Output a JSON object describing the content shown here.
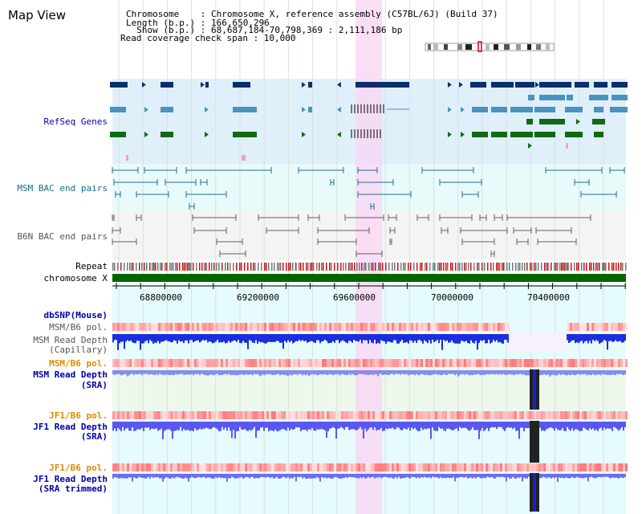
{
  "title": "Map View",
  "info": {
    "chromosome": "Chromosome    : Chromosome X, reference assembly (C57BL/6J) (Build 37)",
    "length": "Length (b.p.) : 166,650,296",
    "show": "  Show (b.p.) : 68,687,184-70,798,369 : 2,111,186 bp",
    "coverage": "Read coverage check span : 10,000"
  },
  "tracks": {
    "refseq": "RefSeq Genes",
    "msm_bac": "MSM BAC end pairs",
    "b6n_bac": "B6N BAC end pairs",
    "repeat": "Repeat",
    "chromosome": "chromosome X",
    "dbsnp": "dbSNP(Mouse)",
    "msm_pol": "MSM/B6 pol.",
    "msm_depth_cap_1": "MSM Read Depth",
    "msm_depth_cap_2": "(Capillary)",
    "msm_pol_2": "MSM/B6 pol.",
    "msm_depth_sra_1": "MSM Read Depth",
    "msm_depth_sra_2": "(SRA)",
    "jf1_pol": "JF1/B6 pol.",
    "jf1_depth_1": "JF1 Read Depth",
    "jf1_depth_2": "(SRA)",
    "jf1_pol_2": "JF1/B6 pol.",
    "jf1_trim_1": "JF1 Read Depth",
    "jf1_trim_2": "(SRA trimmed)"
  },
  "axis": {
    "ticks": [
      "68800000",
      "69200000",
      "69600000",
      "70000000",
      "70400000"
    ]
  },
  "colors": {
    "refseq_bg": "#dff0fa",
    "msm_bac_bg": "#e8fafa",
    "b6n_bac_bg": "#f4f4f4",
    "highlight": "#f8d8f4",
    "gene_dark": "#0b2f6b",
    "gene_light": "#4a92c0",
    "gene_green": "#0f6a12",
    "msm_line": "#1f6e8e",
    "b6n_line": "#606060",
    "chrom_bar": "#006600",
    "label_blue": "#0000aa",
    "label_teal": "#1a6e8a",
    "label_gray": "#555555",
    "label_orange": "#e08a00",
    "depth_blue": "#3030e8"
  }
}
